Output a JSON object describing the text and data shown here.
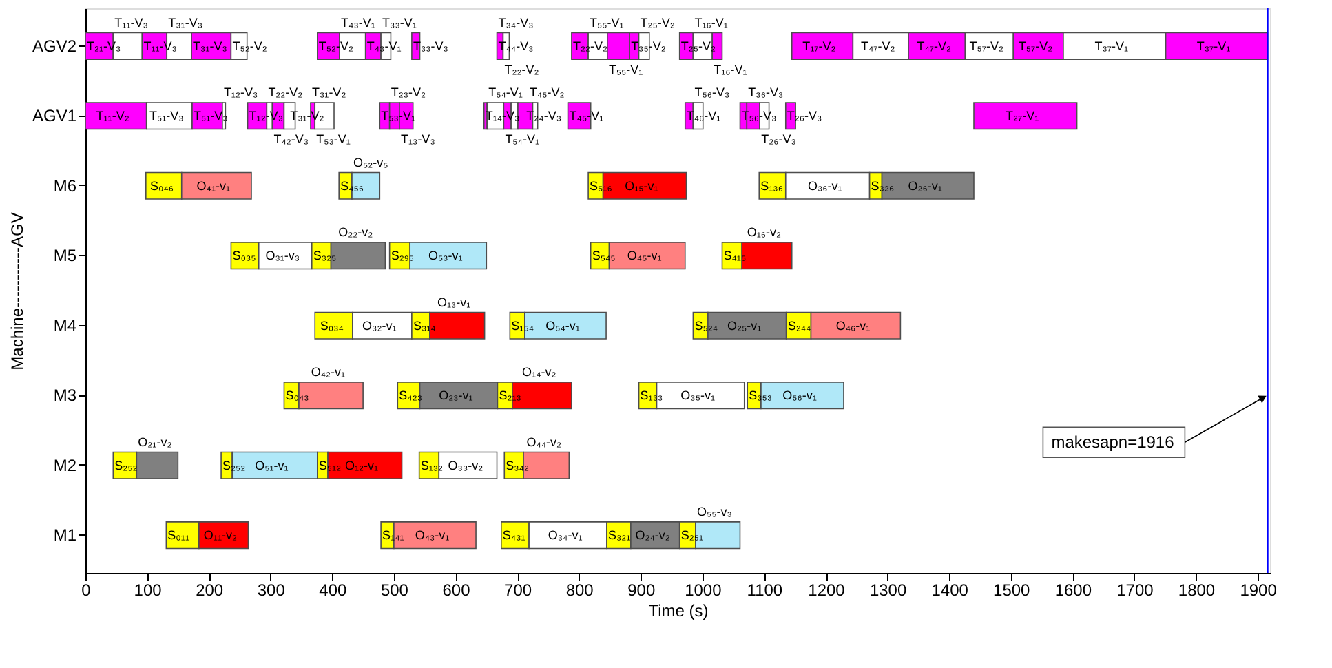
{
  "chart_data": {
    "type": "bar",
    "orientation": "horizontal",
    "xlabel": "Time (s)",
    "ylabel": "Machine-----------AGV",
    "categories": [
      "AGV2",
      "AGV1",
      "M6",
      "M5",
      "M4",
      "M3",
      "M2",
      "M1"
    ],
    "xlim": [
      0,
      1920
    ],
    "xticks": [
      0,
      100,
      200,
      300,
      400,
      500,
      600,
      700,
      800,
      900,
      1000,
      1100,
      1200,
      1300,
      1400,
      1500,
      1600,
      1700,
      1800,
      1900
    ],
    "series": [
      {
        "base": [
          0,
          0,
          98,
          236,
          372,
          322,
          45,
          131
        ],
        "values": [
          45,
          99,
          58,
          45,
          61,
          24,
          38,
          53
        ],
        "colors": [
          "#ff00ff",
          "#ff00ff",
          "#ffff00",
          "#ffff00",
          "#ffff00",
          "#ffff00",
          "#ffff00",
          "#ffff00"
        ],
        "value_labels": [
          "T₂₁-V₃",
          "T₁₁-V₂",
          "S₀₄₆",
          "S₀₃₅",
          "S₀₃₄",
          "S₀₄₃",
          "S₂₅₂",
          "S₀₁₁"
        ]
      },
      {
        "base": [
          45,
          99,
          156,
          281,
          433,
          346,
          83,
          184
        ],
        "values": [
          47,
          74,
          113,
          86,
          96,
          104,
          67,
          80
        ],
        "colors": [
          "#ffffff",
          "#ffffff",
          "#ff8080",
          "#ffffff",
          "#ffffff",
          "#ff8080",
          "#808080",
          "#ff0000"
        ],
        "value_labels": [
          "T₁₁-V₃",
          "T₅₁-V₃",
          "O₄₁-v₁",
          "O₃₁-v₃",
          "O₃₂-v₁",
          "O₄₂-v₁",
          "O₂₁-v₂",
          "O₁₁-v₂"
        ]
      },
      {
        "base": [
          92,
          173,
          411,
          367,
          529,
          506,
          220,
          479
        ],
        "values": [
          40,
          49,
          21,
          31,
          29,
          36,
          18,
          21
        ],
        "colors": [
          "#ff00ff",
          "#ff00ff",
          "#ffff00",
          "#ffff00",
          "#ffff00",
          "#ffff00",
          "#ffff00",
          "#ffff00"
        ],
        "value_labels": [
          "T₁₁-V₃",
          "T₅₁-V₃",
          "S₄₅₆",
          "S₃₂₅",
          "S₃₁₄",
          "S₄₂₃",
          "S₂₅₂",
          "S₁₄₁"
        ]
      },
      {
        "base": [
          132,
          222,
          432,
          398,
          558,
          542,
          238,
          500
        ],
        "values": [
          40,
          5,
          45,
          88,
          89,
          126,
          138,
          133
        ],
        "colors": [
          "#ffffff",
          "#ffffff",
          "#b0e8f8",
          "#808080",
          "#ff0000",
          "#808080",
          "#b0e8f8",
          "#ff8080"
        ],
        "value_labels": [
          "T₃₁-V₃",
          "T₁₂-V₃",
          "O₅₂-v₅",
          "O₂₂-v₂",
          "O₁₃-v₁",
          "O₂₃-v₁",
          "O₅₁-v₁",
          "O₄₃-v₁"
        ]
      },
      {
        "base": [
          172,
          263,
          815,
          493,
          688,
          668,
          376,
          674
        ],
        "values": [
          64,
          31,
          24,
          33,
          24,
          24,
          17,
          45
        ],
        "colors": [
          "#ff00ff",
          "#ff00ff",
          "#ffff00",
          "#ffff00",
          "#ffff00",
          "#ffff00",
          "#ffff00",
          "#ffff00"
        ],
        "value_labels": [
          "T₃₁-V₃",
          "T₁₂-V₃",
          "S₅₁₆",
          "S₂₉₅",
          "S₁₅₄",
          "S₂₁₃",
          "S₅₁₂",
          "S₄₃₁"
        ]
      },
      {
        "base": [
          236,
          294,
          839,
          526,
          712,
          692,
          393,
          719
        ],
        "values": [
          26,
          9,
          135,
          124,
          132,
          96,
          120,
          126
        ],
        "colors": [
          "#ffffff",
          "#ffffff",
          "#ff0000",
          "#b0e8f8",
          "#b0e8f8",
          "#ff0000",
          "#ff0000",
          "#ffffff"
        ],
        "value_labels": [
          "T₅₂-V₂",
          "T₂₂-V₂",
          "O₁₅-v₁",
          "O₅₃-v₁",
          "O₅₄-v₁",
          "O₁₄-v₂",
          "O₁₂-v₁",
          "O₃₄-v₁"
        ]
      },
      {
        "base": [
          376,
          303,
          1092,
          819,
          985,
          897,
          541,
          845
        ],
        "values": [
          36,
          19,
          43,
          30,
          24,
          29,
          32,
          39
        ],
        "colors": [
          "#ff00ff",
          "#ff00ff",
          "#ffff00",
          "#ffff00",
          "#ffff00",
          "#ffff00",
          "#ffff00",
          "#ffff00"
        ],
        "value_labels": [
          "T₅₂-V₂",
          "T₄₂-V₃",
          "S₁₃₆",
          "S₅₄₅",
          "S₅₂₄",
          "S₁₃₃",
          "S₁₃₂",
          "S₃₂₁"
        ]
      },
      {
        "base": [
          412,
          322,
          1135,
          849,
          1009,
          926,
          573,
          884
        ],
        "values": [
          42,
          18,
          136,
          123,
          127,
          142,
          94,
          79
        ],
        "colors": [
          "#ffffff",
          "#ffffff",
          "#ffffff",
          "#ff8080",
          "#808080",
          "#ffffff",
          "#ffffff",
          "#808080"
        ],
        "value_labels": [
          "T₄₃-V₁",
          "T₃₁-V₂",
          "O₃₆-v₁",
          "O₄₅-v₁",
          "O₂₅-v₁",
          "O₃₅-v₁",
          "O₃₃-v₂",
          "O₂₄-v₂"
        ]
      },
      {
        "base": [
          454,
          365,
          1271,
          1032,
          1136,
          1073,
          679,
          963
        ],
        "values": [
          25,
          7,
          20,
          32,
          40,
          22,
          31,
          26
        ],
        "colors": [
          "#ff00ff",
          "#ff00ff",
          "#ffff00",
          "#ffff00",
          "#ffff00",
          "#ffff00",
          "#ffff00",
          "#ffff00"
        ],
        "value_labels": [
          "T₄₃-V₁",
          "T₃₁-V₂",
          "S₃₂₆",
          "S₄₁₅",
          "S₂₄₄",
          "S₃₅₃",
          "S₃₄₂",
          "S₂₅₁"
        ]
      },
      {
        "base": [
          479,
          372,
          1291,
          1064,
          1176,
          1095,
          710,
          989
        ],
        "values": [
          16,
          31,
          149,
          81,
          145,
          134,
          74,
          72
        ],
        "colors": [
          "#ffffff",
          "#ffffff",
          "#808080",
          "#ff0000",
          "#ff8080",
          "#b0e8f8",
          "#ff8080",
          "#b0e8f8"
        ],
        "value_labels": [
          "T₃₃-V₁",
          "T₅₃-V₁",
          "O₂₆-v₁",
          "O₁₆-v₂",
          "O₄₆-v₁",
          "O₅₆-v₁",
          "O₄₄-v₂",
          "O₅₅-v₃"
        ]
      },
      {
        "base": [
          529,
          477,
          null,
          null,
          null,
          null,
          null,
          null
        ],
        "values": [
          13,
          16,
          null,
          null,
          null,
          null,
          null,
          null
        ],
        "colors": [
          "#ff00ff",
          "#ff00ff",
          null,
          null,
          null,
          null,
          null,
          null
        ],
        "value_labels": [
          "T₃₃-V₃",
          "T₅₃-V₁",
          null,
          null,
          null,
          null,
          null,
          null
        ]
      },
      {
        "base": [
          667,
          493,
          null,
          null,
          null,
          null,
          null,
          null
        ],
        "values": [
          10,
          16,
          null,
          null,
          null,
          null,
          null,
          null
        ],
        "colors": [
          "#ff00ff",
          "#ff00ff",
          null,
          null,
          null,
          null,
          null,
          null
        ],
        "value_labels": [
          "T₄₄-V₃",
          "T₂₃-V₂",
          null,
          null,
          null,
          null,
          null,
          null
        ]
      },
      {
        "base": [
          677,
          509,
          null,
          null,
          null,
          null,
          null,
          null
        ],
        "values": [
          10,
          22,
          null,
          null,
          null,
          null,
          null,
          null
        ],
        "colors": [
          "#ffffff",
          "#ff00ff",
          null,
          null,
          null,
          null,
          null,
          null
        ],
        "value_labels": [
          "T₂₂-V₂",
          "T₁₃-V₃",
          null,
          null,
          null,
          null,
          null,
          null
        ]
      },
      {
        "base": [
          788,
          646,
          null,
          null,
          null,
          null,
          null,
          null
        ],
        "values": [
          27,
          5,
          null,
          null,
          null,
          null,
          null,
          null
        ],
        "colors": [
          "#ff00ff",
          "#ff00ff",
          null,
          null,
          null,
          null,
          null,
          null
        ],
        "value_labels": [
          "T₂₂-V₂",
          "T₁₄-V₃",
          null,
          null,
          null,
          null,
          null,
          null
        ]
      },
      {
        "base": [
          815,
          651,
          null,
          null,
          null,
          null,
          null,
          null
        ],
        "values": [
          31,
          27,
          null,
          null,
          null,
          null,
          null,
          null
        ],
        "colors": [
          "#ffffff",
          "#ffffff",
          null,
          null,
          null,
          null,
          null,
          null
        ],
        "value_labels": [
          "T₅₅-V₁",
          "T₅₄-V₁",
          null,
          null,
          null,
          null,
          null,
          null
        ]
      },
      {
        "base": [
          846,
          678,
          null,
          null,
          null,
          null,
          null,
          null
        ],
        "values": [
          36,
          12,
          null,
          null,
          null,
          null,
          null,
          null
        ],
        "colors": [
          "#ff00ff",
          "#ff00ff",
          null,
          null,
          null,
          null,
          null,
          null
        ],
        "value_labels": [
          "T₅₅-V₁",
          "T₅₄-V₁",
          null,
          null,
          null,
          null,
          null,
          null
        ]
      },
      {
        "base": [
          882,
          690,
          null,
          null,
          null,
          null,
          null,
          null
        ],
        "values": [
          15,
          11,
          null,
          null,
          null,
          null,
          null,
          null
        ],
        "colors": [
          "#ff00ff",
          "#ffffff",
          null,
          null,
          null,
          null,
          null,
          null
        ],
        "value_labels": [
          "T₃₅-V₂",
          "T₂₄-V₃",
          null,
          null,
          null,
          null,
          null,
          null
        ]
      },
      {
        "base": [
          897,
          701,
          null,
          null,
          null,
          null,
          null,
          null
        ],
        "values": [
          17,
          24,
          null,
          null,
          null,
          null,
          null,
          null
        ],
        "colors": [
          "#ffffff",
          "#ff00ff",
          null,
          null,
          null,
          null,
          null,
          null
        ],
        "value_labels": [
          "T₂₅-V₂",
          "T₄₅-V₂",
          null,
          null,
          null,
          null,
          null,
          null
        ]
      },
      {
        "base": [
          963,
          725,
          null,
          null,
          null,
          null,
          null,
          null
        ],
        "values": [
          22,
          8,
          null,
          null,
          null,
          null,
          null,
          null
        ],
        "colors": [
          "#ff00ff",
          "#ffffff",
          null,
          null,
          null,
          null,
          null,
          null
        ],
        "value_labels": [
          "T₂₅-V₂",
          null,
          null,
          null,
          null,
          null,
          null,
          null
        ]
      },
      {
        "base": [
          985,
          782,
          null,
          null,
          null,
          null,
          null,
          null
        ],
        "values": [
          31,
          37,
          null,
          null,
          null,
          null,
          null,
          null
        ],
        "colors": [
          "#ffffff",
          "#ff00ff",
          null,
          null,
          null,
          null,
          null,
          null
        ],
        "value_labels": [
          "T₁₆-V₁",
          "T₄₅-V₁",
          null,
          null,
          null,
          null,
          null,
          null
        ]
      },
      {
        "base": [
          1016,
          972,
          null,
          null,
          null,
          null,
          null,
          null
        ],
        "values": [
          16,
          13,
          null,
          null,
          null,
          null,
          null,
          null
        ],
        "colors": [
          "#ff00ff",
          "#ff00ff",
          null,
          null,
          null,
          null,
          null,
          null
        ],
        "value_labels": [
          "T₁₆-V₁",
          "T₄₆-V₁",
          null,
          null,
          null,
          null,
          null,
          null
        ]
      },
      {
        "base": [
          1145,
          985,
          null,
          null,
          null,
          null,
          null,
          null
        ],
        "values": [
          99,
          16,
          null,
          null,
          null,
          null,
          null,
          null
        ],
        "colors": [
          "#ff00ff",
          "#ffffff",
          null,
          null,
          null,
          null,
          null,
          null
        ],
        "value_labels": [
          "T₁₇-V₂",
          "T₅₆-V₃",
          null,
          null,
          null,
          null,
          null,
          null
        ]
      },
      {
        "base": [
          1244,
          1061,
          null,
          null,
          null,
          null,
          null,
          null
        ],
        "values": [
          90,
          11,
          null,
          null,
          null,
          null,
          null,
          null
        ],
        "colors": [
          "#ffffff",
          "#ff00ff",
          null,
          null,
          null,
          null,
          null,
          null
        ],
        "value_labels": [
          "T₄₇-V₂",
          "T₅₆-V₃",
          null,
          null,
          null,
          null,
          null,
          null
        ]
      },
      {
        "base": [
          1334,
          1072,
          null,
          null,
          null,
          null,
          null,
          null
        ],
        "values": [
          92,
          21,
          null,
          null,
          null,
          null,
          null,
          null
        ],
        "colors": [
          "#ff00ff",
          "#ff00ff",
          null,
          null,
          null,
          null,
          null,
          null
        ],
        "value_labels": [
          "T₄₇-V₂",
          "T₃₆-V₃",
          null,
          null,
          null,
          null,
          null,
          null
        ]
      },
      {
        "base": [
          1426,
          1093,
          null,
          null,
          null,
          null,
          null,
          null
        ],
        "values": [
          78,
          15,
          null,
          null,
          null,
          null,
          null,
          null
        ],
        "colors": [
          "#ffffff",
          "#ffffff",
          null,
          null,
          null,
          null,
          null,
          null
        ],
        "value_labels": [
          "T₅₇-V₂",
          "T₂₆-V₃",
          null,
          null,
          null,
          null,
          null,
          null
        ]
      },
      {
        "base": [
          1504,
          1135,
          null,
          null,
          null,
          null,
          null,
          null
        ],
        "values": [
          81,
          16,
          null,
          null,
          null,
          null,
          null,
          null
        ],
        "colors": [
          "#ff00ff",
          "#ff00ff",
          null,
          null,
          null,
          null,
          null,
          null
        ],
        "value_labels": [
          "T₅₇-V₂",
          "T₂₆-V₃",
          null,
          null,
          null,
          null,
          null,
          null
        ]
      },
      {
        "base": [
          1585,
          1440,
          null,
          null,
          null,
          null,
          null,
          null
        ],
        "values": [
          166,
          167,
          null,
          null,
          null,
          null,
          null,
          null
        ],
        "colors": [
          "#ffffff",
          "#ff00ff",
          null,
          null,
          null,
          null,
          null,
          null
        ],
        "value_labels": [
          "T₃₇-V₁",
          "T₂₇-V₁",
          null,
          null,
          null,
          null,
          null,
          null
        ]
      },
      {
        "base": [
          1751,
          null,
          null,
          null,
          null,
          null,
          null,
          null
        ],
        "values": [
          165,
          null,
          null,
          null,
          null,
          null,
          null,
          null
        ],
        "colors": [
          "#ff00ff",
          null,
          null,
          null,
          null,
          null,
          null,
          null
        ],
        "value_labels": [
          "T₃₇-V₁",
          null,
          null,
          null,
          null,
          null,
          null,
          null
        ]
      }
    ],
    "ref_lines": [
      {
        "axis": "x",
        "value": 1916,
        "color": "#0000ff"
      }
    ],
    "annotations": [
      {
        "text": "makesapn=1916",
        "x": 1916,
        "y": "M3"
      },
      {
        "text": "T₃₄-V₃",
        "x": 667,
        "y": "AGV2"
      }
    ]
  }
}
